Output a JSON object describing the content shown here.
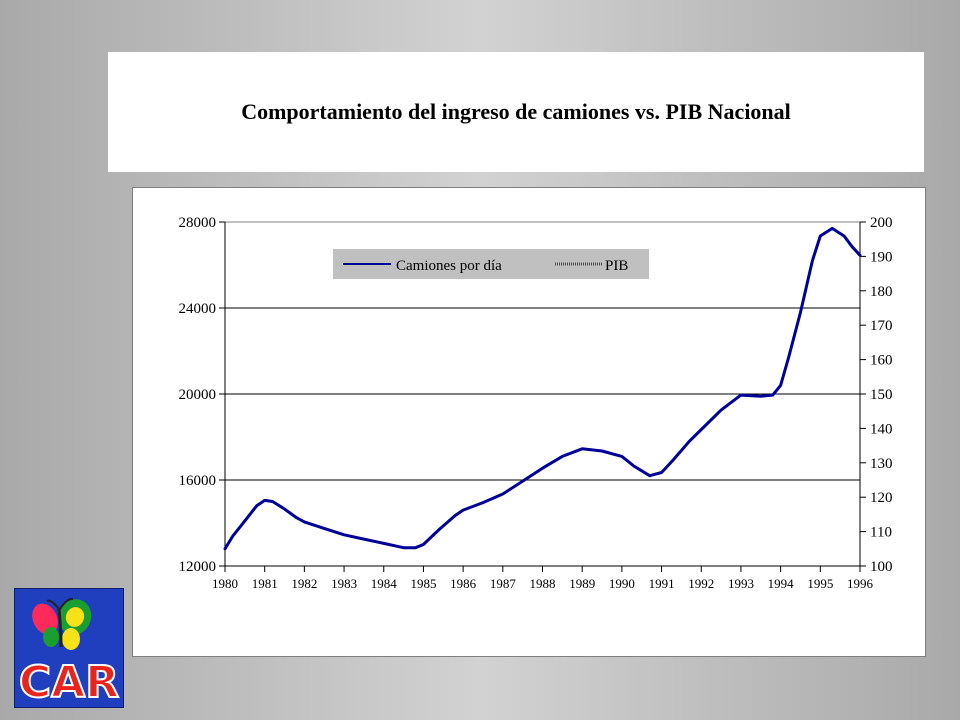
{
  "slide": {
    "title": "Comportamiento del ingreso de camiones vs. PIB Nacional"
  },
  "logo": {
    "text": "CAR",
    "icon": "butterfly-icon",
    "colors": {
      "background": "#1f3fbf",
      "letters": "#e8241c"
    }
  },
  "chart_data": {
    "type": "line",
    "grid": "horizontal major gridlines on left axis",
    "legend_placement": "top-left inside plot",
    "x_ticks": [
      "1980",
      "1981",
      "1982",
      "1983",
      "1984",
      "1985",
      "1986",
      "1987",
      "1988",
      "1989",
      "1990",
      "1991",
      "1992",
      "1993",
      "1994",
      "1995",
      "1996"
    ],
    "y_left": {
      "range": [
        12000,
        28000
      ],
      "ticks": [
        "28000",
        "24000",
        "20000",
        "16000",
        "12000"
      ]
    },
    "y_right": {
      "range": [
        100,
        200
      ],
      "ticks": [
        "200",
        "190",
        "180",
        "170",
        "160",
        "150",
        "140",
        "130",
        "120",
        "110",
        "100"
      ]
    },
    "series": [
      {
        "name": "Camiones por día",
        "axis": "left",
        "color": "#000099",
        "x": [
          1980.0,
          1980.2,
          1980.5,
          1980.8,
          1981.0,
          1981.2,
          1981.5,
          1981.8,
          1982.0,
          1982.5,
          1983.0,
          1983.5,
          1984.0,
          1984.5,
          1984.8,
          1985.0,
          1985.4,
          1985.8,
          1986.0,
          1986.5,
          1987.0,
          1987.5,
          1988.0,
          1988.5,
          1989.0,
          1989.5,
          1990.0,
          1990.3,
          1990.7,
          1991.0,
          1991.3,
          1991.7,
          1992.0,
          1992.5,
          1993.0,
          1993.5,
          1993.8,
          1994.0,
          1994.2,
          1994.5,
          1994.8,
          1995.0,
          1995.3,
          1995.6,
          1995.8,
          1996.0
        ],
        "y": [
          12800,
          13400,
          14100,
          14800,
          15050,
          15000,
          14650,
          14250,
          14050,
          13750,
          13450,
          13250,
          13050,
          12850,
          12850,
          13000,
          13700,
          14350,
          14600,
          14950,
          15350,
          15950,
          16550,
          17100,
          17450,
          17350,
          17100,
          16650,
          16200,
          16350,
          16950,
          17800,
          18350,
          19250,
          19950,
          19900,
          19950,
          20400,
          21700,
          23800,
          26200,
          27350,
          27700,
          27350,
          26850,
          26450
        ]
      },
      {
        "name": "PIB",
        "axis": "right",
        "color": "#ff0000",
        "x": [],
        "y": []
      }
    ]
  }
}
